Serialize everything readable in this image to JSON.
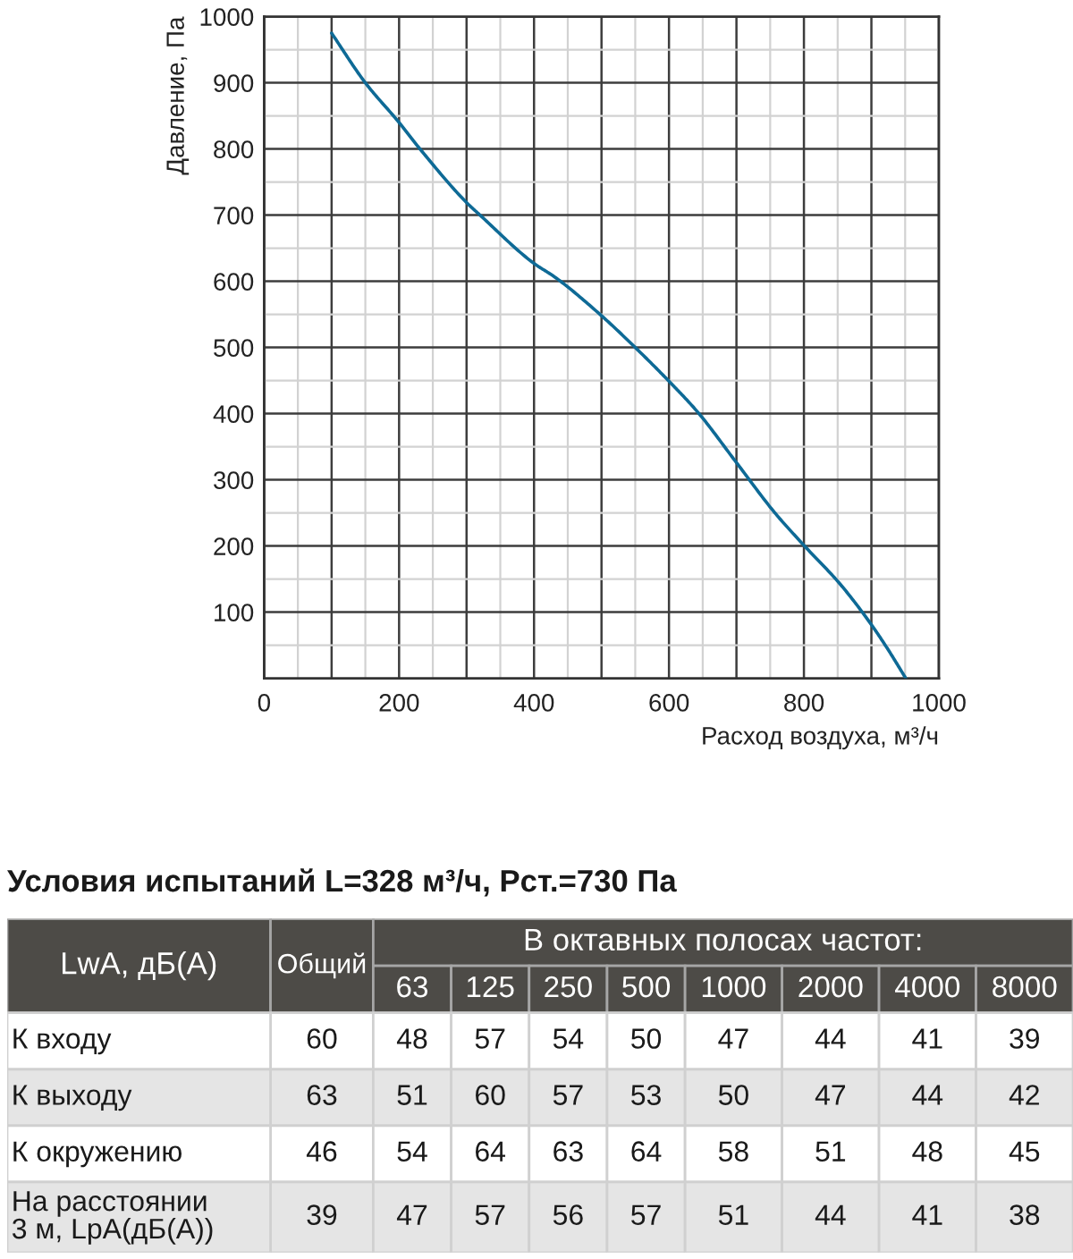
{
  "chart_data": [
    {
      "type": "line",
      "xlabel": "Расход воздуха, м³/ч",
      "ylabel": "Давление, Па",
      "x": [
        100,
        150,
        200,
        231,
        300,
        320,
        400,
        430,
        500,
        550,
        600,
        642,
        700,
        757,
        800,
        854,
        900,
        925,
        951
      ],
      "series": [
        {
          "color": "#0e6a96",
          "values": [
            975,
            900,
            840,
            800,
            719,
            700,
            627,
            607,
            548,
            500,
            449,
            403,
            326,
            250,
            201,
            142,
            81,
            43,
            0
          ]
        }
      ],
      "xlim": [
        0,
        1000
      ],
      "ylim": [
        0,
        1000
      ],
      "xticks": [
        0,
        {
          "value": 100,
          "label": null
        },
        200,
        {
          "value": 300,
          "label": null
        },
        400,
        {
          "value": 500,
          "label": null
        },
        600,
        {
          "value": 700,
          "label": null
        },
        800,
        {
          "value": 900,
          "label": null
        },
        1000
      ],
      "yticks": [
        100,
        200,
        300,
        400,
        500,
        600,
        700,
        800,
        900,
        1000
      ],
      "grid": true
    },
    {
      "type": "heatmap",
      "title": "Условия испытаний L=328 м³/ч, Рст.=730 Па",
      "ylabel": "LwA, дБ(A)",
      "xlabel": "В октавных полосах частот:",
      "categories": [
        "Общий",
        "63",
        "125",
        "250",
        "500",
        "1000",
        "2000",
        "4000",
        "8000"
      ],
      "y_categories": [
        "К входу",
        "К выходу",
        "К окружению",
        "На расстоянии\n3 м, LpA(дБ(A))"
      ],
      "cells": [
        [
          60,
          48,
          57,
          54,
          50,
          47,
          44,
          41,
          39
        ],
        [
          63,
          51,
          60,
          57,
          53,
          50,
          47,
          44,
          42
        ],
        [
          46,
          54,
          64,
          63,
          64,
          58,
          51,
          48,
          45
        ],
        [
          39,
          47,
          57,
          56,
          57,
          51,
          44,
          41,
          38
        ]
      ],
      "data_labels": true
    }
  ]
}
